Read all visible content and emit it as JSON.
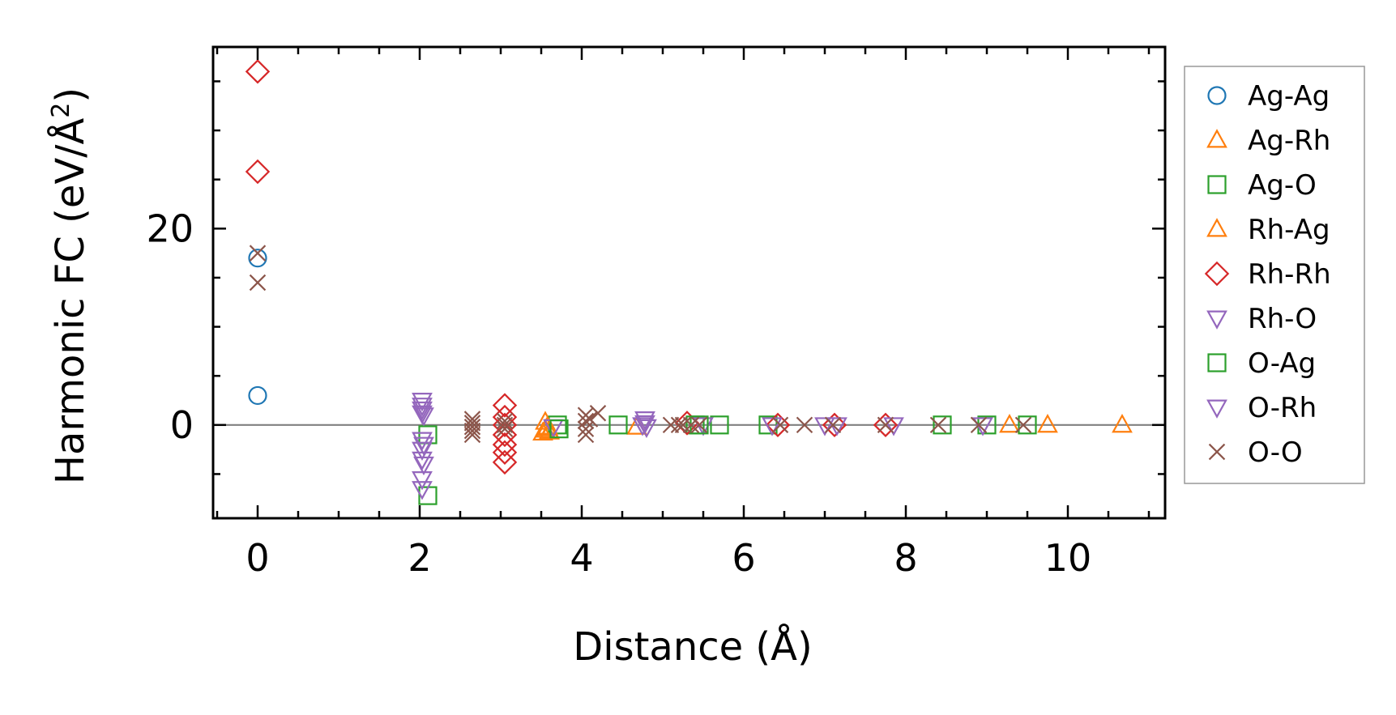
{
  "chart_data": {
    "type": "scatter",
    "xlabel": "Distance (Å)",
    "ylabel": "Harmonic FC (eV/Å",
    "ylabel_superscript": "2",
    "ylabel_suffix": ")",
    "xlim": [
      -0.55,
      11.2
    ],
    "ylim": [
      -9.5,
      38.5
    ],
    "x_ticks": [
      0,
      2,
      4,
      6,
      8,
      10
    ],
    "y_ticks": [
      0,
      20
    ],
    "x_minor_step": 0.5,
    "y_minor_step": 5,
    "zero_line": true,
    "grid": false,
    "legend_position": "right-outside",
    "series": [
      {
        "name": "Ag-Ag",
        "marker": "circle",
        "color": "#1f77b4",
        "x": [
          0,
          0
        ],
        "y": [
          17.0,
          3.0
        ]
      },
      {
        "name": "Ag-Rh",
        "marker": "triangle-up",
        "color": "#ff7f0e",
        "x": [
          3.55,
          3.57,
          3.6,
          4.68,
          9.28,
          9.75,
          10.67
        ],
        "y": [
          0.3,
          -0.3,
          -0.7,
          -0.2,
          0.0,
          0.0,
          0.0
        ]
      },
      {
        "name": "Ag-O",
        "marker": "square",
        "color": "#2ca02c",
        "x": [
          2.1,
          2.1,
          3.7,
          4.45,
          5.4,
          5.7,
          6.3,
          8.45,
          9.0,
          9.5
        ],
        "y": [
          -1.0,
          -7.2,
          0.0,
          0.0,
          0.0,
          0.0,
          0.0,
          0.0,
          0.0,
          0.0
        ]
      },
      {
        "name": "Rh-Ag",
        "marker": "triangle-up",
        "color": "#ff7f0e",
        "x": [
          3.52,
          3.55,
          3.58,
          3.6
        ],
        "y": [
          -0.8,
          -0.5,
          -0.2,
          -0.6
        ]
      },
      {
        "name": "Rh-Rh",
        "marker": "diamond",
        "color": "#d62728",
        "x": [
          0,
          0,
          3.05,
          3.05,
          3.05,
          3.05,
          3.05,
          3.05,
          3.05,
          5.3,
          6.42,
          7.12,
          7.75
        ],
        "y": [
          36.0,
          25.8,
          2.0,
          0.8,
          0.0,
          -1.0,
          -2.0,
          -2.8,
          -3.8,
          0.2,
          0.0,
          0.0,
          0.0
        ]
      },
      {
        "name": "Rh-O",
        "marker": "triangle-down",
        "color": "#9467bd",
        "x": [
          2.03,
          2.03,
          2.03,
          2.03,
          2.03,
          2.03,
          2.03,
          2.03,
          2.03,
          3.65,
          4.78,
          4.78,
          4.8,
          5.5,
          6.35,
          7.0,
          7.15,
          7.85,
          8.95
        ],
        "y": [
          2.5,
          2.0,
          1.6,
          1.2,
          -1.5,
          -2.5,
          -3.5,
          -5.5,
          -6.5,
          -0.2,
          0.6,
          0.2,
          -0.2,
          0.0,
          0.0,
          0.0,
          0.0,
          0.0,
          0.0
        ]
      },
      {
        "name": "O-Ag",
        "marker": "square",
        "color": "#2ca02c",
        "x": [
          3.72,
          5.45
        ],
        "y": [
          -0.4,
          0.0
        ]
      },
      {
        "name": "O-Rh",
        "marker": "triangle-down",
        "color": "#9467bd",
        "x": [
          2.05,
          2.05,
          2.05,
          4.75
        ],
        "y": [
          1.0,
          -2.0,
          -4.0,
          0.0
        ]
      },
      {
        "name": "O-O",
        "marker": "x",
        "color": "#8c564b",
        "x": [
          0,
          0,
          2.65,
          2.65,
          2.65,
          2.65,
          2.65,
          3.05,
          3.05,
          3.05,
          4.05,
          4.05,
          4.05,
          4.05,
          4.1,
          4.2,
          5.1,
          5.2,
          5.25,
          5.35,
          5.45,
          6.45,
          6.75,
          7.1,
          7.75,
          8.4,
          8.9,
          9.45
        ],
        "y": [
          17.5,
          14.5,
          0.6,
          0.2,
          -0.2,
          -0.6,
          -1.0,
          0.4,
          0.0,
          -0.4,
          1.0,
          0.4,
          -0.4,
          -1.0,
          0.6,
          1.2,
          0.0,
          0.0,
          0.0,
          0.0,
          0.0,
          0.0,
          0.0,
          0.0,
          0.0,
          0.0,
          0.0,
          0.0
        ]
      }
    ]
  },
  "colors": {
    "axis": "#000000",
    "zero_line": "#808080",
    "legend_border": "#999999"
  }
}
